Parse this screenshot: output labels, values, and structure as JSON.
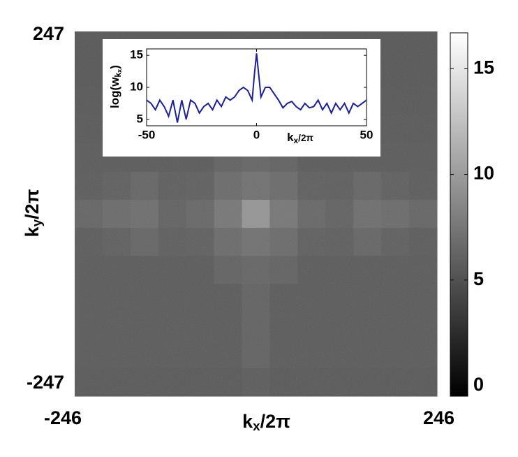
{
  "chart_data": [
    {
      "type": "heatmap",
      "xlabel": {
        "main": "k",
        "sub": "x",
        "rest": "/2π"
      },
      "ylabel": {
        "main": "k",
        "sub": "y",
        "rest": "/2π"
      },
      "xlim": [
        -246,
        246
      ],
      "ylim": [
        -247,
        247
      ],
      "xticks": [
        -246,
        246
      ],
      "yticks": [
        -247,
        247
      ],
      "colormap": "gray",
      "clim": [
        -0.5,
        16.7
      ],
      "cticks": [
        0,
        5,
        10,
        15
      ],
      "z": [
        [
          5.2,
          5.2,
          5.2,
          5.2,
          5.2,
          5.2,
          5.2,
          5.2,
          5.2,
          5.2,
          5.2,
          5.2,
          5.2
        ],
        [
          5.2,
          5.2,
          5.2,
          5.2,
          5.2,
          5.2,
          5.2,
          5.2,
          5.2,
          5.2,
          5.2,
          5.2,
          5.2
        ],
        [
          5.3,
          5.3,
          5.3,
          5.3,
          5.3,
          5.3,
          5.3,
          5.3,
          5.3,
          5.3,
          5.3,
          5.3,
          5.3
        ],
        [
          5.4,
          5.4,
          5.4,
          5.4,
          5.4,
          5.4,
          5.6,
          5.4,
          5.4,
          5.4,
          5.4,
          5.4,
          5.4
        ],
        [
          5.5,
          5.5,
          5.5,
          5.5,
          5.5,
          6.0,
          6.2,
          6.0,
          5.5,
          5.5,
          5.5,
          5.5,
          5.5
        ],
        [
          5.6,
          5.8,
          6.2,
          5.7,
          5.8,
          6.6,
          7.0,
          6.6,
          5.8,
          5.7,
          6.2,
          5.8,
          5.6
        ],
        [
          6.2,
          6.6,
          6.8,
          6.0,
          6.3,
          7.4,
          9.5,
          7.4,
          6.3,
          6.0,
          6.8,
          6.6,
          6.2
        ],
        [
          5.6,
          5.8,
          6.2,
          5.7,
          5.8,
          6.6,
          7.0,
          6.6,
          5.8,
          5.7,
          6.2,
          5.8,
          5.6
        ],
        [
          5.5,
          5.5,
          5.5,
          5.5,
          5.5,
          6.0,
          6.2,
          6.0,
          5.5,
          5.5,
          5.5,
          5.5,
          5.5
        ],
        [
          5.5,
          5.5,
          5.5,
          5.5,
          5.5,
          5.5,
          6.0,
          5.5,
          5.5,
          5.5,
          5.5,
          5.5,
          5.5
        ],
        [
          5.5,
          5.5,
          5.5,
          5.5,
          5.5,
          5.5,
          6.0,
          5.5,
          5.5,
          5.5,
          5.5,
          5.5,
          5.5
        ],
        [
          5.5,
          5.5,
          5.5,
          5.5,
          5.5,
          5.5,
          6.0,
          5.5,
          5.5,
          5.5,
          5.5,
          5.5,
          5.5
        ],
        [
          5.4,
          5.4,
          5.4,
          5.4,
          5.4,
          5.4,
          5.6,
          5.4,
          5.4,
          5.4,
          5.4,
          5.4,
          5.4
        ]
      ]
    },
    {
      "type": "line",
      "xlabel": {
        "main": "k",
        "sub": "x",
        "rest": "/2π"
      },
      "ylabel": {
        "main": "log(w",
        "sub": "k",
        "sub2": "x",
        "rest": ")"
      },
      "xlim": [
        -50,
        50
      ],
      "ylim": [
        4,
        16
      ],
      "xticks": [
        -50,
        0,
        50
      ],
      "yticks": [
        5,
        10,
        15
      ],
      "color": "#1a1f9c",
      "x": [
        -50,
        -48,
        -46,
        -44,
        -42,
        -40,
        -38,
        -36,
        -34,
        -32,
        -30,
        -28,
        -26,
        -24,
        -22,
        -20,
        -18,
        -16,
        -14,
        -12,
        -10,
        -8,
        -6,
        -4,
        -2,
        -1,
        0,
        1,
        2,
        4,
        6,
        8,
        10,
        12,
        14,
        16,
        18,
        20,
        22,
        24,
        26,
        28,
        30,
        32,
        34,
        36,
        38,
        40,
        42,
        44,
        46,
        48,
        50
      ],
      "values": [
        8,
        7.5,
        6.5,
        8,
        7,
        5.5,
        8,
        4.5,
        8,
        5,
        8,
        7.5,
        6,
        7,
        7.5,
        6.5,
        8,
        7,
        8.5,
        8,
        8.5,
        9.5,
        10,
        9.5,
        8,
        12,
        15.3,
        12,
        8.5,
        10,
        10,
        9,
        8,
        6.8,
        7.5,
        7.8,
        7,
        6.5,
        7.5,
        6.8,
        7,
        8,
        6.5,
        7.5,
        6,
        7.5,
        6.5,
        7.5,
        6,
        7.5,
        7,
        7.5,
        8
      ]
    }
  ]
}
